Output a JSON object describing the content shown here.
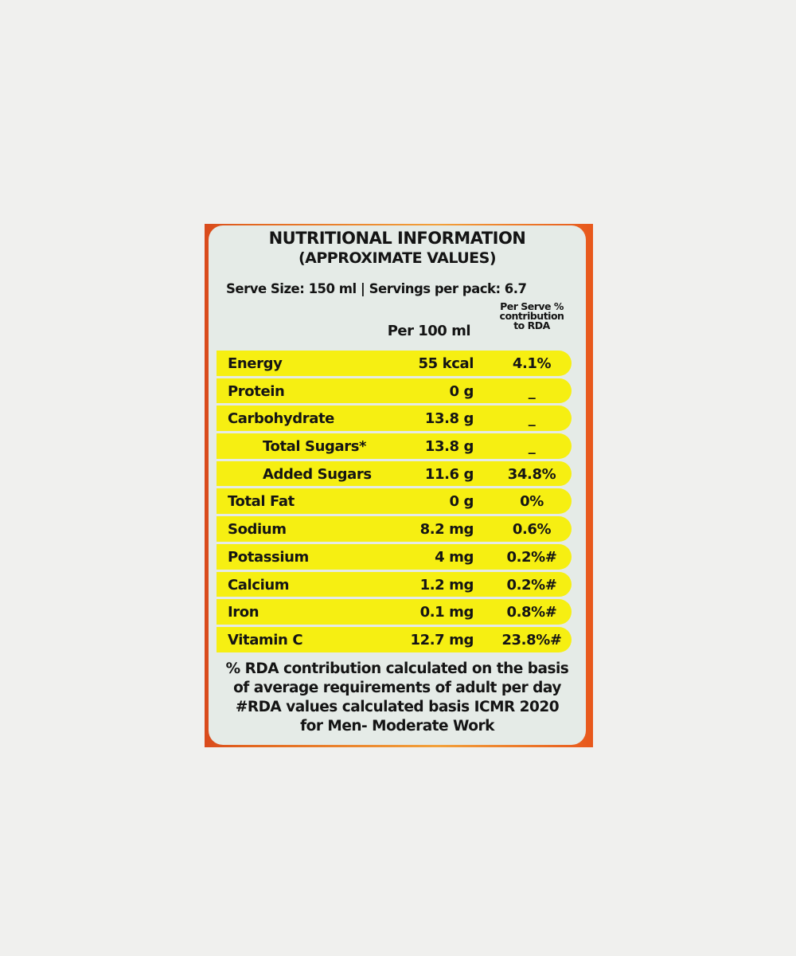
{
  "label": {
    "title": "NUTRITIONAL INFORMATION",
    "subtitle": "(APPROXIMATE VALUES)",
    "serve_info": "Serve Size: 150 ml | Servings per pack: 6.7",
    "col_per100": "Per 100 ml",
    "col_rda": [
      "Per Serve %",
      "contribution",
      "to RDA"
    ],
    "rows": [
      {
        "name": "Energy",
        "value": "55 kcal",
        "rda": "4.1%"
      },
      {
        "name": "Protein",
        "value": "0 g",
        "rda": "_"
      },
      {
        "name": "Carbohydrate",
        "value": "13.8 g",
        "rda": "_"
      },
      {
        "name": "Total Sugars*",
        "value": "13.8 g",
        "rda": "_",
        "indent": true
      },
      {
        "name": "Added Sugars",
        "value": "11.6 g",
        "rda": "34.8%",
        "indent": true
      },
      {
        "name": "Total Fat",
        "value": "0 g",
        "rda": "0%"
      },
      {
        "name": "Sodium",
        "value": "8.2 mg",
        "rda": "0.6%"
      },
      {
        "name": "Potassium",
        "value": "4 mg",
        "rda": "0.2%#"
      },
      {
        "name": "Calcium",
        "value": "1.2 mg",
        "rda": "0.2%#"
      },
      {
        "name": "Iron",
        "value": "0.1 mg",
        "rda": "0.8%#"
      },
      {
        "name": "Vitamin C",
        "value": "12.7 mg",
        "rda": "23.8%#"
      }
    ],
    "footnotes": [
      "% RDA contribution calculated on the basis",
      "of average requirements of adult per day",
      "#RDA values calculated basis ICMR 2020",
      "for Men- Moderate Work"
    ],
    "colors": {
      "row_highlight": "#f6ef12",
      "panel": "#e5ebe7",
      "pack": "#e2641f"
    }
  }
}
